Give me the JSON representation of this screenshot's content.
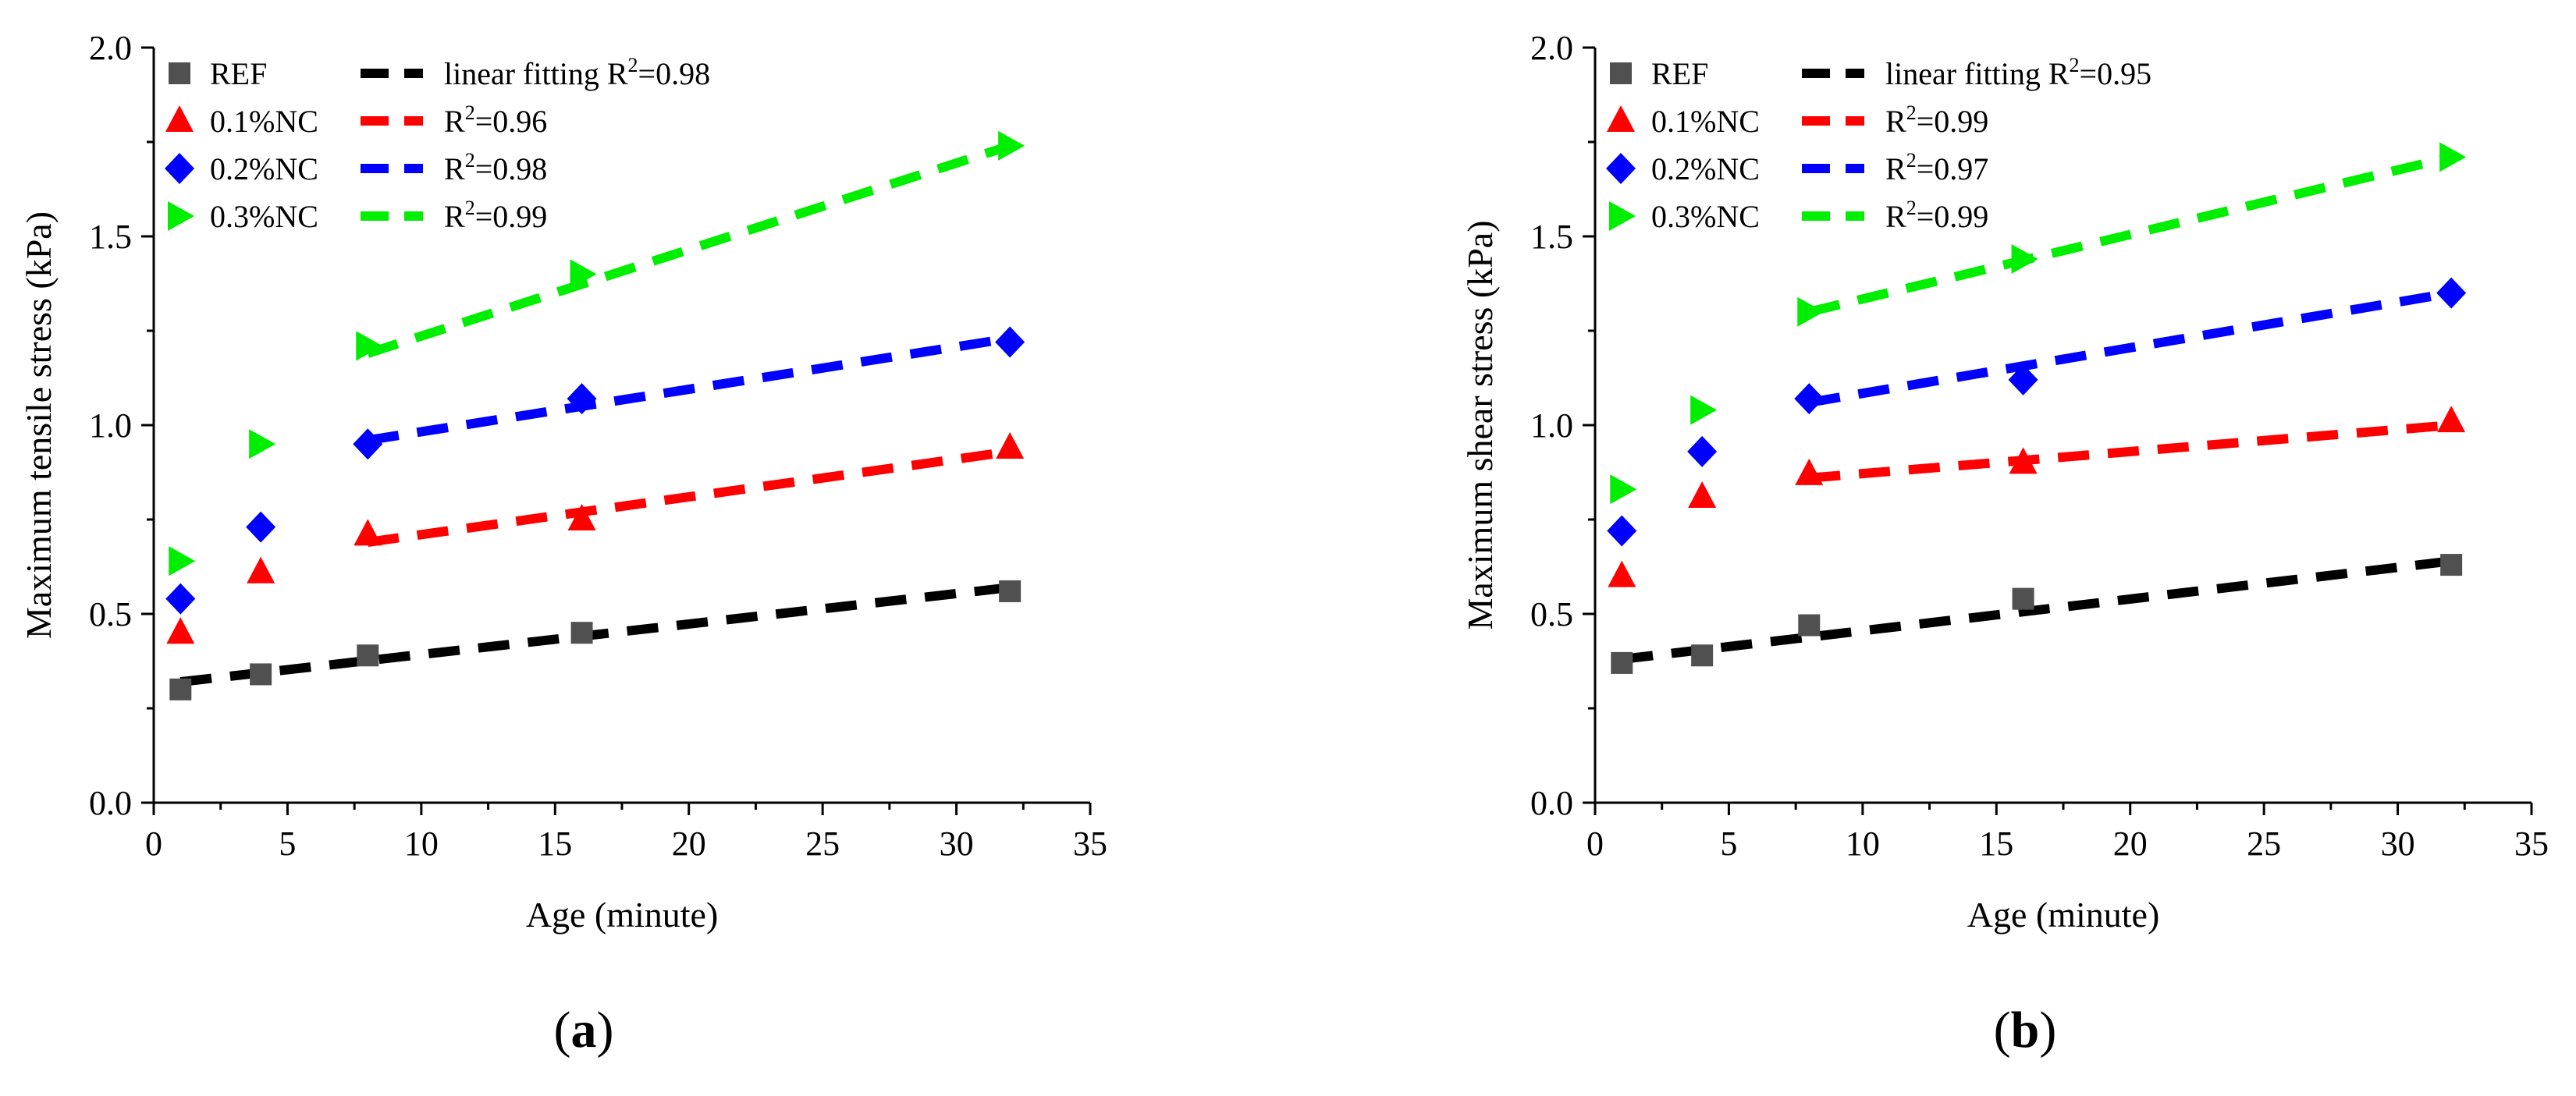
{
  "chart_data": [
    {
      "type": "scatter",
      "panel_label": "a",
      "xlabel": "Age (minute)",
      "ylabel": "Maximum tensile stress (kPa)",
      "xlim": [
        0,
        35
      ],
      "ylim": [
        0.0,
        2.0
      ],
      "xticks": [
        "0",
        "5",
        "10",
        "15",
        "20",
        "25",
        "30",
        "35"
      ],
      "yticks": [
        "0.0",
        "0.5",
        "1.0",
        "1.5",
        "2.0"
      ],
      "grid": false,
      "legend_position": "top-left",
      "series": [
        {
          "name": "REF",
          "marker": "square",
          "color": "#505050",
          "x": [
            1,
            4,
            8,
            16,
            32
          ],
          "y": [
            0.3,
            0.34,
            0.39,
            0.45,
            0.56
          ],
          "fit": {
            "label": "linear fitting R",
            "r2_prefix": "R",
            "r2_sup": "2",
            "r2_value": "=0.98",
            "color": "#000000",
            "x": [
              1,
              32
            ],
            "y": [
              0.32,
              0.57
            ]
          }
        },
        {
          "name": "0.1%NC",
          "marker": "triangle-up",
          "color": "#ff0000",
          "x": [
            1,
            4,
            8,
            16,
            32
          ],
          "y": [
            0.45,
            0.61,
            0.71,
            0.75,
            0.94
          ],
          "fit": {
            "label": "",
            "r2_prefix": "R",
            "r2_sup": "2",
            "r2_value": "=0.96",
            "color": "#ff0000",
            "x": [
              8,
              32
            ],
            "y": [
              0.69,
              0.93
            ]
          }
        },
        {
          "name": "0.2%NC",
          "marker": "diamond",
          "color": "#0000ff",
          "x": [
            1,
            4,
            8,
            16,
            32
          ],
          "y": [
            0.54,
            0.73,
            0.95,
            1.07,
            1.22
          ],
          "fit": {
            "label": "",
            "r2_prefix": "R",
            "r2_sup": "2",
            "r2_value": "=0.98",
            "color": "#0000ff",
            "x": [
              8,
              32
            ],
            "y": [
              0.96,
              1.23
            ]
          }
        },
        {
          "name": "0.3%NC",
          "marker": "triangle-right",
          "color": "#00ee00",
          "x": [
            1,
            4,
            8,
            16,
            32
          ],
          "y": [
            0.64,
            0.95,
            1.21,
            1.4,
            1.74
          ],
          "fit": {
            "label": "",
            "r2_prefix": "R",
            "r2_sup": "2",
            "r2_value": "=0.99",
            "color": "#00ee00",
            "x": [
              8,
              32
            ],
            "y": [
              1.19,
              1.74
            ]
          }
        }
      ]
    },
    {
      "type": "scatter",
      "panel_label": "b",
      "xlabel": "Age (minute)",
      "ylabel": "Maximum shear stress (kPa)",
      "xlim": [
        0,
        35
      ],
      "ylim": [
        0.0,
        2.0
      ],
      "xticks": [
        "0",
        "5",
        "10",
        "15",
        "20",
        "25",
        "30",
        "35"
      ],
      "yticks": [
        "0.0",
        "0.5",
        "1.0",
        "1.5",
        "2.0"
      ],
      "grid": false,
      "legend_position": "top-left",
      "series": [
        {
          "name": "REF",
          "marker": "square",
          "color": "#505050",
          "x": [
            1,
            4,
            8,
            16,
            32
          ],
          "y": [
            0.37,
            0.39,
            0.47,
            0.54,
            0.63
          ],
          "fit": {
            "label": "linear fitting R",
            "r2_prefix": "R",
            "r2_sup": "2",
            "r2_value": "=0.95",
            "color": "#000000",
            "x": [
              1,
              32
            ],
            "y": [
              0.38,
              0.64
            ]
          }
        },
        {
          "name": "0.1%NC",
          "marker": "triangle-up",
          "color": "#ff0000",
          "x": [
            1,
            4,
            8,
            16,
            32
          ],
          "y": [
            0.6,
            0.81,
            0.87,
            0.9,
            1.01
          ],
          "fit": {
            "label": "",
            "r2_prefix": "R",
            "r2_sup": "2",
            "r2_value": "=0.99",
            "color": "#ff0000",
            "x": [
              8,
              32
            ],
            "y": [
              0.86,
              1.0
            ]
          }
        },
        {
          "name": "0.2%NC",
          "marker": "diamond",
          "color": "#0000ff",
          "x": [
            1,
            4,
            8,
            16,
            32
          ],
          "y": [
            0.72,
            0.93,
            1.07,
            1.12,
            1.35
          ],
          "fit": {
            "label": "",
            "r2_prefix": "R",
            "r2_sup": "2",
            "r2_value": "=0.97",
            "color": "#0000ff",
            "x": [
              8,
              32
            ],
            "y": [
              1.06,
              1.35
            ]
          }
        },
        {
          "name": "0.3%NC",
          "marker": "triangle-right",
          "color": "#00ee00",
          "x": [
            1,
            4,
            8,
            16,
            32
          ],
          "y": [
            0.83,
            1.04,
            1.3,
            1.44,
            1.71
          ],
          "fit": {
            "label": "",
            "r2_prefix": "R",
            "r2_sup": "2",
            "r2_value": "=0.99",
            "color": "#00ee00",
            "x": [
              8,
              32
            ],
            "y": [
              1.3,
              1.71
            ]
          }
        }
      ]
    }
  ]
}
